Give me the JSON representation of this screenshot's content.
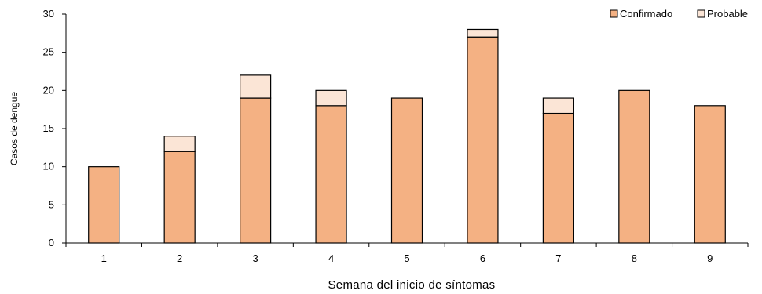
{
  "chart_data": {
    "type": "bar",
    "stacked": true,
    "categories": [
      "1",
      "2",
      "3",
      "4",
      "5",
      "6",
      "7",
      "8",
      "9"
    ],
    "series": [
      {
        "name": "Confirmado",
        "values": [
          10,
          12,
          19,
          18,
          19,
          27,
          17,
          20,
          18
        ],
        "color": "#F4B183"
      },
      {
        "name": "Probable",
        "values": [
          0,
          2,
          3,
          2,
          0,
          1,
          2,
          0,
          0
        ],
        "color": "#FBE5D6"
      }
    ],
    "xlabel": "Semana del inicio de síntomas",
    "ylabel": "Casos de dengue",
    "ylim": [
      0,
      30
    ],
    "yticks": [
      0,
      5,
      10,
      15,
      20,
      25,
      30
    ],
    "grid": false,
    "legend": "top-right"
  }
}
